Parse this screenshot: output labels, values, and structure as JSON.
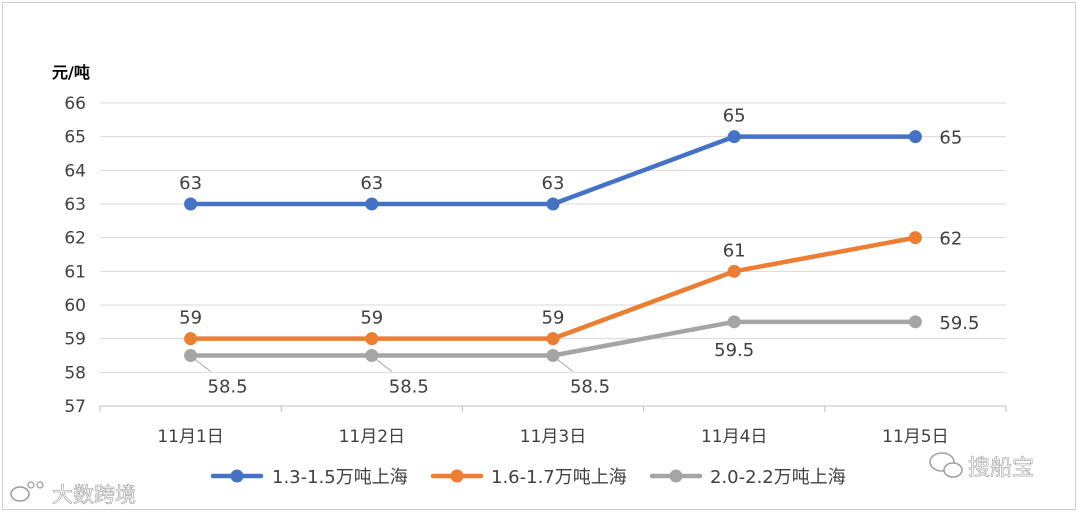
{
  "chart_data": {
    "type": "line",
    "ylabel": "元/吨",
    "ylim": [
      57,
      66
    ],
    "yticks": [
      57,
      58,
      59,
      60,
      61,
      62,
      63,
      64,
      65,
      66
    ],
    "categories": [
      "11月1日",
      "11月2日",
      "11月3日",
      "11月4日",
      "11月5日"
    ],
    "grid": true,
    "legend_position": "bottom",
    "series": [
      {
        "name": "1.3-1.5万吨上海",
        "color": "#4472C4",
        "values": [
          63,
          63,
          63,
          65,
          65
        ]
      },
      {
        "name": "1.6-1.7万吨上海",
        "color": "#ED7D31",
        "values": [
          59,
          59,
          59,
          61,
          62
        ]
      },
      {
        "name": "2.0-2.2万吨上海",
        "color": "#A5A5A5",
        "values": [
          58.5,
          58.5,
          58.5,
          59.5,
          59.5
        ]
      }
    ]
  },
  "watermarks": {
    "left": "大数跨境",
    "right": "搜船宝"
  }
}
